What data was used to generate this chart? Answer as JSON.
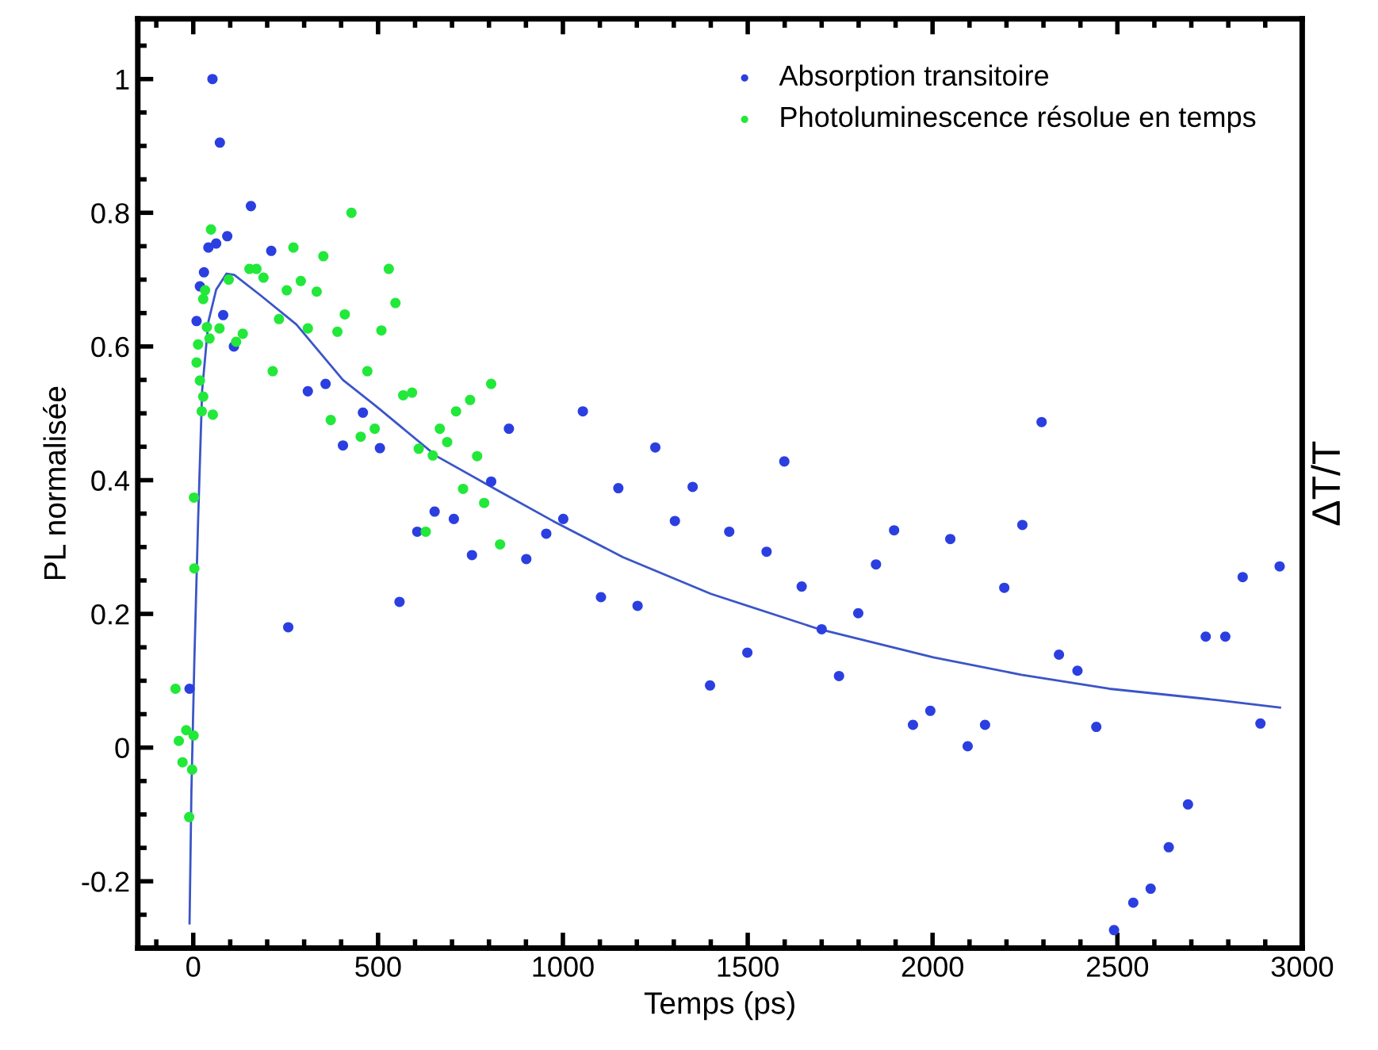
{
  "chart_data": {
    "type": "scatter",
    "xlabel": "Temps (ps)",
    "ylabel": "PL normalisée",
    "y2label": "ΔT/T",
    "xlim": [
      -150,
      3000
    ],
    "ylim": [
      -0.3,
      1.09
    ],
    "xticks": [
      0,
      500,
      1000,
      1500,
      2000,
      2500,
      3000
    ],
    "yticks": [
      -0.2,
      0,
      0.2,
      0.4,
      0.6,
      0.8,
      1
    ],
    "grid": false,
    "legend": "top right",
    "marker": "circle",
    "series": [
      {
        "name": "Absorption transitoire",
        "color": "#2b3fe0",
        "x": [
          -10,
          9,
          18,
          29,
          41,
          52,
          62,
          72,
          81,
          92,
          110,
          156,
          211,
          257,
          310,
          358,
          405,
          459,
          505,
          558,
          606,
          653,
          705,
          754,
          806,
          854,
          901,
          955,
          1001,
          1054,
          1103,
          1150,
          1202,
          1250,
          1303,
          1351,
          1398,
          1450,
          1499,
          1551,
          1599,
          1646,
          1700,
          1747,
          1799,
          1847,
          1896,
          1947,
          1994,
          2048,
          2095,
          2142,
          2194,
          2243,
          2295,
          2342,
          2392,
          2443,
          2491,
          2543,
          2590,
          2639,
          2691,
          2739,
          2792,
          2839,
          2887,
          2939
        ],
        "values": [
          0.088,
          0.638,
          0.69,
          0.711,
          0.748,
          1.0,
          0.754,
          0.905,
          0.647,
          0.765,
          0.6,
          0.81,
          0.743,
          0.18,
          0.533,
          0.544,
          0.452,
          0.501,
          0.448,
          0.218,
          0.323,
          0.353,
          0.342,
          0.288,
          0.398,
          0.477,
          0.282,
          0.32,
          0.342,
          0.503,
          0.225,
          0.388,
          0.212,
          0.449,
          0.339,
          0.39,
          0.093,
          0.323,
          0.142,
          0.293,
          0.428,
          0.241,
          0.177,
          0.107,
          0.201,
          0.274,
          0.325,
          0.034,
          0.055,
          0.312,
          0.002,
          0.034,
          0.239,
          0.333,
          0.487,
          0.139,
          0.115,
          0.031,
          -0.273,
          -0.232,
          -0.211,
          -0.149,
          -0.085,
          0.166,
          0.166,
          0.255,
          0.036,
          0.271
        ]
      },
      {
        "name": "Photoluminescence résolue en temps",
        "color": "#22e83a",
        "x": [
          -48,
          -39,
          -29,
          -19,
          -11,
          -3,
          1,
          2,
          3,
          9,
          13,
          18,
          23,
          27,
          27,
          32,
          37,
          44,
          48,
          53,
          71,
          96,
          116,
          134,
          152,
          171,
          190,
          215,
          232,
          253,
          271,
          291,
          310,
          334,
          352,
          372,
          390,
          410,
          428,
          453,
          471,
          491,
          509,
          529,
          547,
          568,
          592,
          610,
          629,
          648,
          667,
          687,
          711,
          730,
          749,
          768,
          787,
          806,
          830
        ],
        "values": [
          0.088,
          0.01,
          -0.022,
          0.026,
          -0.104,
          -0.033,
          0.018,
          0.374,
          0.268,
          0.576,
          0.603,
          0.549,
          0.503,
          0.525,
          0.671,
          0.684,
          0.629,
          0.612,
          0.775,
          0.498,
          0.627,
          0.7,
          0.607,
          0.619,
          0.716,
          0.716,
          0.703,
          0.563,
          0.641,
          0.684,
          0.748,
          0.698,
          0.627,
          0.682,
          0.735,
          0.49,
          0.622,
          0.648,
          0.8,
          0.465,
          0.563,
          0.477,
          0.624,
          0.716,
          0.665,
          0.527,
          0.531,
          0.447,
          0.323,
          0.437,
          0.477,
          0.457,
          0.503,
          0.387,
          0.52,
          0.436,
          0.366,
          0.544,
          0.304
        ]
      },
      {
        "type": "line",
        "color": "#3a55c8",
        "marker": "none",
        "x": [
          -10,
          -5,
          3,
          13,
          24,
          41,
          62,
          90,
          111,
          181,
          279,
          405,
          503,
          658,
          826,
          973,
          1162,
          1400,
          1694,
          2002,
          2240,
          2478,
          2772,
          2940
        ],
        "values": [
          -0.263,
          -0.066,
          0.131,
          0.337,
          0.534,
          0.637,
          0.685,
          0.709,
          0.707,
          0.677,
          0.633,
          0.55,
          0.507,
          0.436,
          0.384,
          0.339,
          0.285,
          0.23,
          0.177,
          0.135,
          0.109,
          0.088,
          0.071,
          0.06
        ]
      }
    ]
  }
}
